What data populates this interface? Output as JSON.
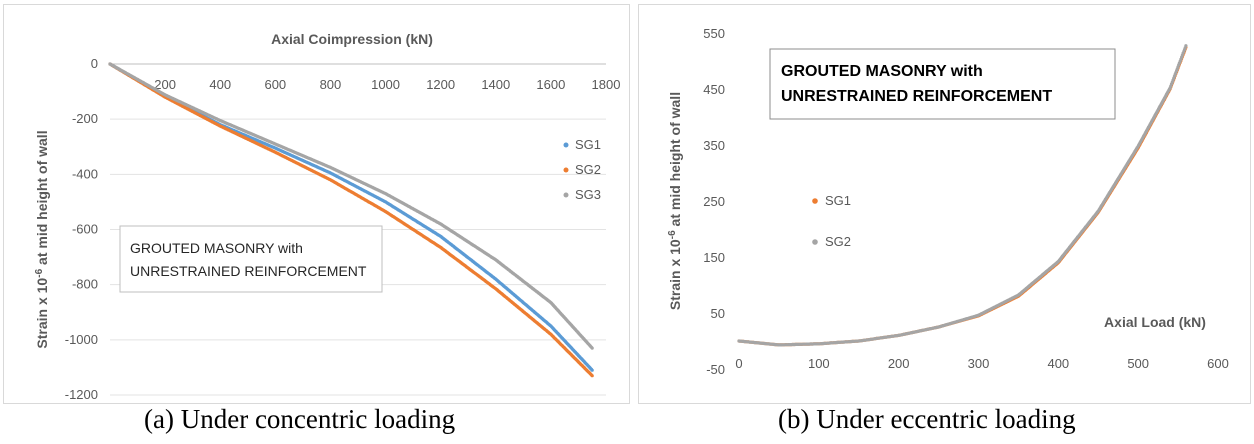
{
  "panels": [
    {
      "caption": "(a) Under concentric loading",
      "annotation": [
        "GROUTED MASONRY with",
        "UNRESTRAINED REINFORCEMENT"
      ],
      "colors": {
        "SG1": "#5b9bd5",
        "SG2": "#ed7d31",
        "SG3": "#a5a5a5"
      }
    },
    {
      "caption": "(b) Under eccentric loading",
      "annotation": [
        "GROUTED MASONRY with",
        "UNRESTRAINED REINFORCEMENT"
      ],
      "colors": {
        "SG1": "#ed7d31",
        "SG2": "#a5a5a5"
      }
    }
  ],
  "chart_data": [
    {
      "type": "scatter",
      "title": "",
      "xlabel": "Axial Coimpression (kN)",
      "ylabel": "Strain x 10-6 at mid height of wall",
      "xlim": [
        0,
        1800
      ],
      "ylim": [
        -1200,
        0
      ],
      "x_ticks": [
        "200",
        "400",
        "600",
        "800",
        "1000",
        "1200",
        "1400",
        "1600",
        "1800"
      ],
      "y_ticks": [
        "0",
        "-200",
        "-400",
        "-600",
        "-800",
        "-1000",
        "-1200"
      ],
      "grid": true,
      "legend": "right",
      "series": [
        {
          "name": "SG1",
          "x": [
            0,
            200,
            400,
            600,
            800,
            1000,
            1200,
            1400,
            1600,
            1750
          ],
          "values": [
            0,
            -118,
            -220,
            -305,
            -395,
            -500,
            -625,
            -780,
            -950,
            -1110
          ]
        },
        {
          "name": "SG2",
          "x": [
            0,
            200,
            400,
            600,
            800,
            1000,
            1200,
            1400,
            1600,
            1750
          ],
          "values": [
            0,
            -120,
            -225,
            -320,
            -420,
            -535,
            -665,
            -815,
            -980,
            -1130
          ]
        },
        {
          "name": "SG3",
          "x": [
            0,
            200,
            400,
            600,
            800,
            1000,
            1200,
            1400,
            1600,
            1750
          ],
          "values": [
            0,
            -112,
            -205,
            -290,
            -375,
            -470,
            -580,
            -710,
            -865,
            -1030
          ]
        }
      ]
    },
    {
      "type": "scatter",
      "title": "",
      "xlabel": "Axial Load (kN)",
      "ylabel": "Strain x 10-6 at mid height of wall",
      "xlim": [
        0,
        600
      ],
      "ylim": [
        -50,
        550
      ],
      "x_ticks": [
        "0",
        "100",
        "200",
        "300",
        "400",
        "500",
        "600"
      ],
      "y_ticks": [
        "550",
        "450",
        "350",
        "250",
        "150",
        "50",
        "-50"
      ],
      "grid": false,
      "legend": "left",
      "series": [
        {
          "name": "SG1",
          "x": [
            0,
            50,
            100,
            150,
            200,
            250,
            300,
            350,
            400,
            450,
            500,
            540,
            560
          ],
          "values": [
            0,
            -7,
            -5,
            0,
            10,
            25,
            45,
            80,
            140,
            230,
            345,
            450,
            525
          ]
        },
        {
          "name": "SG2",
          "x": [
            0,
            50,
            100,
            150,
            200,
            250,
            300,
            350,
            400,
            450,
            500,
            540,
            560
          ],
          "values": [
            0,
            -7,
            -5,
            0,
            10,
            25,
            46,
            82,
            142,
            232,
            348,
            452,
            528
          ]
        }
      ]
    }
  ]
}
